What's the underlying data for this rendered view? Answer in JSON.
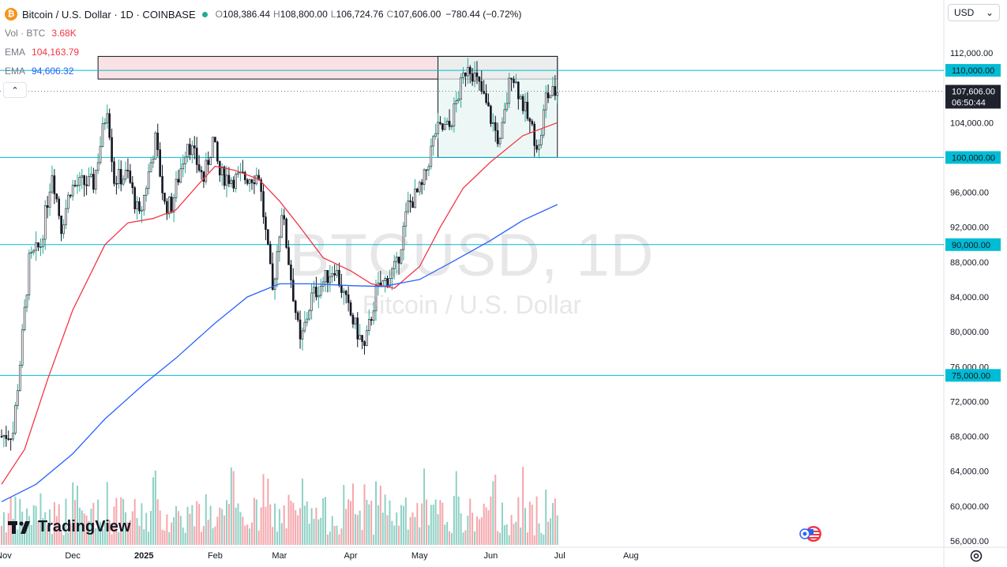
{
  "header": {
    "symbol_label": "Bitcoin / U.S. Dollar · 1D · COINBASE",
    "coin_glyph": "₿",
    "open_label": "O",
    "open": "108,386.44",
    "high_label": "H",
    "high": "108,800.00",
    "low_label": "L",
    "low": "106,724.76",
    "close_label": "C",
    "close": "107,606.00",
    "change": "−780.44 (−0.72%)"
  },
  "indicators": {
    "vol_label": "Vol · BTC",
    "vol_value": "3.68K",
    "ema1_label": "EMA",
    "ema1_value": "104,163.79",
    "ema2_label": "EMA",
    "ema2_value": "94,606.32"
  },
  "currency_selector": {
    "value": "USD",
    "chevron": "⌄"
  },
  "collapse_glyph": "⌃",
  "watermark": {
    "ticker": "BTCUSD, 1D",
    "name": "Bitcoin / U.S. Dollar"
  },
  "logo_text": "TradingView",
  "colors": {
    "up": "#22ab94",
    "down": "#f23645",
    "up_volume": "#8fd1c5",
    "down_volume": "#f5a6ab",
    "ema_fast": "#f23645",
    "ema_slow": "#2962ff",
    "hline": "#00bcd4",
    "label_bg": "#00bcd4",
    "range_box": "#e6f4f1",
    "resistance_box": "#f7d9dd"
  },
  "chart_data": {
    "type": "candlestick",
    "instrument": "BTCUSD",
    "timeframe": "1D",
    "y_axis": {
      "min": 56000,
      "max": 112000,
      "ticks": [
        112000,
        108000,
        104000,
        100000,
        96000,
        92000,
        88000,
        84000,
        80000,
        76000,
        72000,
        68000,
        64000,
        60000,
        56000
      ],
      "tick_labels": [
        "112,000.00",
        "108,000.00",
        "104,000.00",
        "100,000.00",
        "96,000.00",
        "92,000.00",
        "88,000.00",
        "84,000.00",
        "80,000.00",
        "76,000.00",
        "72,000.00",
        "68,000.00",
        "64,000.00",
        "60,000.00",
        "56,000.00"
      ]
    },
    "x_axis": {
      "labels": [
        "Nov",
        "Dec",
        "2025",
        "Feb",
        "Mar",
        "Apr",
        "May",
        "Jun",
        "Jul",
        "Aug"
      ],
      "label_dates": [
        "2024-11-01",
        "2024-12-01",
        "2025-01-01",
        "2025-02-01",
        "2025-03-01",
        "2025-04-01",
        "2025-05-01",
        "2025-06-01",
        "2025-07-01",
        "2025-08-01"
      ]
    },
    "horizontal_lines": [
      {
        "price": 110000,
        "label": "110,000.00"
      },
      {
        "price": 100000,
        "label": "100,000.00"
      },
      {
        "price": 90000,
        "label": "90,000.00"
      },
      {
        "price": 75000,
        "label": "75,000.00"
      }
    ],
    "last_price": {
      "price": 107606,
      "label": "107,606.00",
      "countdown": "06:50:44"
    },
    "price_dotted_line": 107606,
    "resistance_zone": {
      "start": "2024-12-12",
      "end": "2025-06-30",
      "low": 109000,
      "high": 111600
    },
    "range_box": {
      "start": "2025-05-09",
      "end": "2025-06-30",
      "low": 100000,
      "high": 111600
    },
    "ema_fast": {
      "name": "EMA",
      "points": [
        [
          "2024-10-31",
          62500
        ],
        [
          "2024-11-10",
          66500
        ],
        [
          "2024-11-20",
          74500
        ],
        [
          "2024-12-01",
          82500
        ],
        [
          "2024-12-15",
          90000
        ],
        [
          "2024-12-25",
          92500
        ],
        [
          "2025-01-05",
          93000
        ],
        [
          "2025-01-15",
          94000
        ],
        [
          "2025-01-25",
          97000
        ],
        [
          "2025-02-01",
          99000
        ],
        [
          "2025-02-10",
          98500
        ],
        [
          "2025-02-20",
          97500
        ],
        [
          "2025-03-01",
          95000
        ],
        [
          "2025-03-10",
          92000
        ],
        [
          "2025-03-20",
          88500
        ],
        [
          "2025-04-01",
          87000
        ],
        [
          "2025-04-10",
          85500
        ],
        [
          "2025-04-20",
          85000
        ],
        [
          "2025-05-01",
          87500
        ],
        [
          "2025-05-10",
          92000
        ],
        [
          "2025-05-20",
          96500
        ],
        [
          "2025-06-01",
          99500
        ],
        [
          "2025-06-15",
          102500
        ],
        [
          "2025-06-30",
          104000
        ]
      ]
    },
    "ema_slow": {
      "name": "EMA",
      "points": [
        [
          "2024-10-31",
          60500
        ],
        [
          "2024-11-15",
          62500
        ],
        [
          "2024-12-01",
          66000
        ],
        [
          "2024-12-15",
          70000
        ],
        [
          "2025-01-01",
          74000
        ],
        [
          "2025-01-15",
          77000
        ],
        [
          "2025-02-01",
          81000
        ],
        [
          "2025-02-15",
          84000
        ],
        [
          "2025-03-01",
          85500
        ],
        [
          "2025-03-15",
          85500
        ],
        [
          "2025-04-01",
          85300
        ],
        [
          "2025-04-15",
          85200
        ],
        [
          "2025-05-01",
          86000
        ],
        [
          "2025-05-15",
          88000
        ],
        [
          "2025-06-01",
          90500
        ],
        [
          "2025-06-15",
          92800
        ],
        [
          "2025-06-30",
          94600
        ]
      ]
    },
    "ohlc_anchor_closes": [
      [
        "2024-10-31",
        68000
      ],
      [
        "2024-11-05",
        68500
      ],
      [
        "2024-11-08",
        76500
      ],
      [
        "2024-11-12",
        88000
      ],
      [
        "2024-11-17",
        90000
      ],
      [
        "2024-11-22",
        98500
      ],
      [
        "2024-11-26",
        92000
      ],
      [
        "2024-11-30",
        96500
      ],
      [
        "2024-12-05",
        97000
      ],
      [
        "2024-12-10",
        97000
      ],
      [
        "2024-12-16",
        106000
      ],
      [
        "2024-12-19",
        97500
      ],
      [
        "2024-12-25",
        98000
      ],
      [
        "2024-12-30",
        93000
      ],
      [
        "2025-01-06",
        102000
      ],
      [
        "2025-01-10",
        94500
      ],
      [
        "2025-01-13",
        94500
      ],
      [
        "2025-01-20",
        102000
      ],
      [
        "2025-01-27",
        97500
      ],
      [
        "2025-01-31",
        102000
      ],
      [
        "2025-02-03",
        98000
      ],
      [
        "2025-02-10",
        97500
      ],
      [
        "2025-02-20",
        98000
      ],
      [
        "2025-02-26",
        84500
      ],
      [
        "2025-03-02",
        94000
      ],
      [
        "2025-03-10",
        78500
      ],
      [
        "2025-03-15",
        84000
      ],
      [
        "2025-03-25",
        87500
      ],
      [
        "2025-03-31",
        82500
      ],
      [
        "2025-04-07",
        78000
      ],
      [
        "2025-04-12",
        84500
      ],
      [
        "2025-04-21",
        87500
      ],
      [
        "2025-04-26",
        94500
      ],
      [
        "2025-05-02",
        96500
      ],
      [
        "2025-05-08",
        103000
      ],
      [
        "2025-05-14",
        103500
      ],
      [
        "2025-05-22",
        111000
      ],
      [
        "2025-05-28",
        107500
      ],
      [
        "2025-06-05",
        101500
      ],
      [
        "2025-06-10",
        110000
      ],
      [
        "2025-06-17",
        104500
      ],
      [
        "2025-06-22",
        101000
      ],
      [
        "2025-06-25",
        107000
      ],
      [
        "2025-06-30",
        107606
      ]
    ],
    "volume_note": "Volume histogram along bottom of pane, colored by candle direction"
  }
}
